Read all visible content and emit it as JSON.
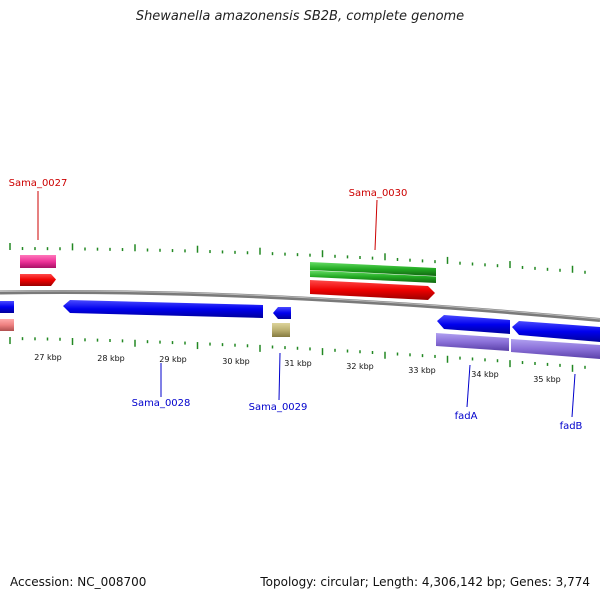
{
  "title": "Shewanella amazonensis SB2B, complete genome",
  "footer": {
    "accession": "Accession: NC_008700",
    "summary": "Topology: circular; Length: 4,306,142 bp; Genes: 3,774"
  },
  "scale_ticks": [
    "27 kbp",
    "28 kbp",
    "29 kbp",
    "30 kbp",
    "31 kbp",
    "32 kbp",
    "33 kbp",
    "34 kbp",
    "35 kbp"
  ],
  "gene_labels": {
    "sama_0027": "Sama_0027",
    "sama_0028": "Sama_0028",
    "sama_0029": "Sama_0029",
    "sama_0030": "Sama_0030",
    "fada": "fadA",
    "fadb": "fadB"
  },
  "colors": {
    "forward_label": "#cc0000",
    "reverse_label": "#0000cc",
    "backbone": "#8a8a8a",
    "cds_red": "#ee0000",
    "cds_blue": "#0000ee",
    "gene_pink": "#ee3399",
    "gene_green": "#22aa22",
    "gene_olive": "#bbb070",
    "gene_lavender": "#8a70d8",
    "gene_salmon": "#ee8080",
    "tick_green": "#228822"
  }
}
